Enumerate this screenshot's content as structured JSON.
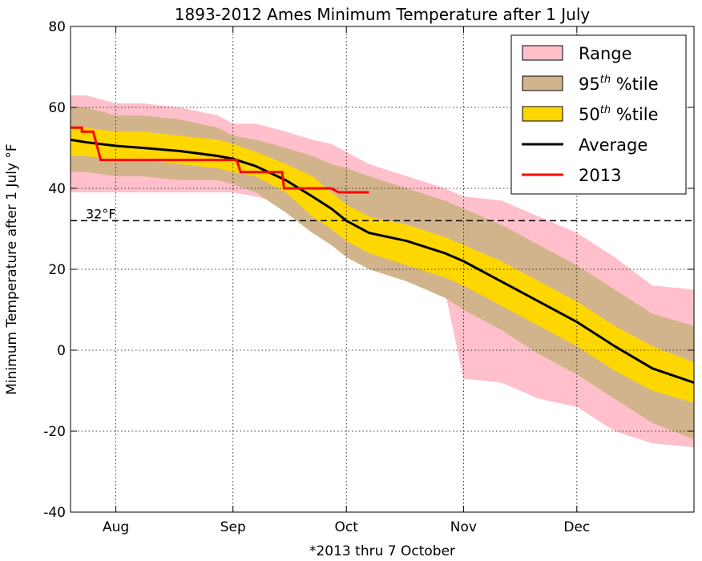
{
  "chart_data": {
    "type": "area",
    "title": "1893-2012 Ames Minimum Temperature after 1 July",
    "xlabel": "*2013 thru 7 October",
    "ylabel": "Minimum Temperature after 1 July °F",
    "x_unit": "day of year",
    "xlim": [
      201,
      366
    ],
    "ylim": [
      -40,
      80
    ],
    "yticks": [
      -40,
      -20,
      0,
      20,
      40,
      60,
      80
    ],
    "xticks": [
      {
        "value": 213,
        "label": "Aug"
      },
      {
        "value": 244,
        "label": "Sep"
      },
      {
        "value": 274,
        "label": "Oct"
      },
      {
        "value": 305,
        "label": "Nov"
      },
      {
        "value": 335,
        "label": "Dec"
      }
    ],
    "grid": true,
    "legend_position": "top-right",
    "reference_line": {
      "y": 32,
      "label": "32°F",
      "style": "dashed"
    },
    "legend": [
      {
        "key": "range",
        "label": "Range",
        "sup": "",
        "color": "#ffc0cb"
      },
      {
        "key": "p95",
        "label": "95",
        "sup": "th",
        "suffix": " %tile",
        "color": "#d2b48c"
      },
      {
        "key": "p50",
        "label": "50",
        "sup": "th",
        "suffix": " %tile",
        "color": "#ffd700"
      },
      {
        "key": "avg",
        "label": "Average",
        "sup": "",
        "color": "#000000"
      },
      {
        "key": "y2013",
        "label": "2013",
        "sup": "",
        "color": "#ff0000"
      }
    ],
    "x": [
      201,
      205,
      213,
      220,
      230,
      240,
      244,
      250,
      258,
      265,
      270,
      274,
      280,
      290,
      300,
      305,
      315,
      325,
      335,
      345,
      355,
      366
    ],
    "series": [
      {
        "name": "Range",
        "color": "#ffc0cb",
        "low": [
          39,
          39,
          39,
          39,
          39,
          39,
          39,
          38,
          36,
          33,
          30,
          27,
          24,
          21,
          15,
          -7,
          -8,
          -12,
          -14,
          -20,
          -23,
          -24
        ],
        "high": [
          63,
          63,
          61,
          61,
          60,
          58,
          56,
          56,
          54,
          52,
          51,
          49,
          46,
          43,
          40,
          38,
          37,
          33,
          29,
          23,
          16,
          15
        ]
      },
      {
        "name": "95th %tile",
        "color": "#d2b48c",
        "low": [
          44,
          44,
          43,
          43,
          42,
          42,
          41,
          39,
          34,
          29,
          26,
          23,
          20,
          17,
          13,
          10,
          5,
          -1,
          -6,
          -12,
          -18,
          -22
        ],
        "high": [
          60,
          60,
          58,
          58,
          57,
          55,
          53,
          52,
          50,
          48,
          46,
          45,
          43,
          40,
          37,
          35,
          31,
          26,
          21,
          15,
          9,
          6
        ]
      },
      {
        "name": "50th %tile",
        "color": "#ffd700",
        "low": [
          48,
          48,
          47,
          47,
          46,
          45,
          44,
          43,
          39,
          33,
          30,
          27,
          24,
          21,
          18,
          16,
          11,
          6,
          1,
          -5,
          -10,
          -13
        ]
      },
      {
        "name": "Average",
        "color": "#000000",
        "values": [
          52,
          51.4,
          50.5,
          50,
          49.2,
          48,
          47.3,
          45.5,
          42,
          38,
          35,
          32,
          29,
          27,
          24,
          22,
          17,
          12,
          7,
          1,
          -4.5,
          -8
        ]
      },
      {
        "name": "2013",
        "color": "#ff0000",
        "points": [
          [
            201,
            55
          ],
          [
            204,
            55
          ],
          [
            204,
            54
          ],
          [
            207,
            54
          ],
          [
            209,
            47
          ],
          [
            245,
            47
          ],
          [
            246,
            44
          ],
          [
            253,
            44
          ],
          [
            257,
            44
          ],
          [
            257.5,
            40
          ],
          [
            270,
            40
          ],
          [
            272,
            39
          ],
          [
            280,
            39
          ]
        ]
      }
    ]
  }
}
